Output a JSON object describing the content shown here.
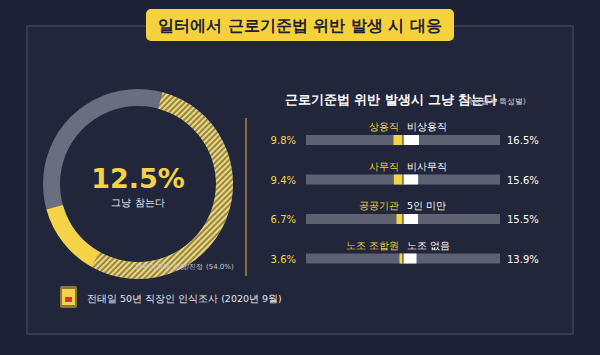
{
  "header": {
    "title": "일터에서 근로기준법 위반 발생 시 대응"
  },
  "footer": {
    "source": "전태일 50년 직장인 인식조사 (2020년 9월)"
  },
  "chart_data": [
    {
      "type": "pie",
      "categories": [
        "정부기관에 상담/진정",
        "그냥 참는다"
      ],
      "values": [
        54.0,
        12.5
      ],
      "value_labels": [
        "(54.0%)",
        "12.5%"
      ],
      "colors": [
        "#eed67a",
        "#f4d348"
      ],
      "data_labels": true
    },
    {
      "type": "bar",
      "orientation": "horizontal",
      "title": "근로기준법 위반 발생시 그냥 참는다",
      "subtitle": "(응답자 특성별)",
      "xlim": [
        0,
        100
      ],
      "tick_labels": false,
      "grid": false,
      "data_labels": true,
      "series": [
        {
          "categories": [
            "상용직",
            "사무직",
            "공공기관",
            "노조 조합원"
          ],
          "values": [
            9.8,
            9.4,
            6.7,
            3.6
          ],
          "value_labels": [
            "9.8%",
            "9.4%",
            "6.7%",
            "3.6%"
          ],
          "color": "#f4d348"
        },
        {
          "categories": [
            "비상용직",
            "비사무직",
            "5인 미만",
            "노조 없음"
          ],
          "values": [
            16.5,
            15.6,
            15.5,
            13.9
          ],
          "value_labels": [
            "16.5%",
            "15.6%",
            "15.5%",
            "13.9%"
          ],
          "color": "#ffffff"
        }
      ]
    }
  ]
}
